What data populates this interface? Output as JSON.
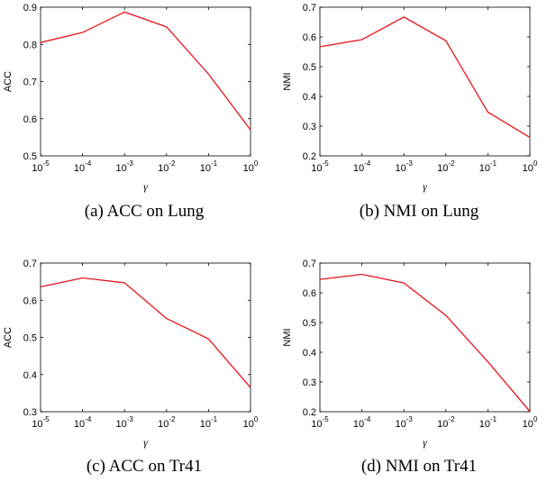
{
  "colors": {
    "line": "#e8141c",
    "axis": "#000000"
  },
  "chart_data": [
    {
      "type": "line",
      "caption": "(a)  ACC on Lung",
      "xlabel": "γ",
      "ylabel": "ACC",
      "x_scale": "log",
      "x": [
        1e-05,
        0.0001,
        0.001,
        0.01,
        0.1,
        1
      ],
      "xtick_labels": [
        {
          "base": "10",
          "exp": "-5"
        },
        {
          "base": "10",
          "exp": "-4"
        },
        {
          "base": "10",
          "exp": "-3"
        },
        {
          "base": "10",
          "exp": "-2"
        },
        {
          "base": "10",
          "exp": "-1"
        },
        {
          "base": "10",
          "exp": "0"
        }
      ],
      "ylim": [
        0.5,
        0.9
      ],
      "yticks": [
        "0.5",
        "0.6",
        "0.7",
        "0.8",
        "0.9"
      ],
      "series": [
        {
          "values": [
            0.805,
            0.832,
            0.887,
            0.847,
            0.72,
            0.57
          ]
        }
      ]
    },
    {
      "type": "line",
      "caption": "(b)  NMI on Lung",
      "xlabel": "γ",
      "ylabel": "NMI",
      "x_scale": "log",
      "x": [
        1e-05,
        0.0001,
        0.001,
        0.01,
        0.1,
        1
      ],
      "xtick_labels": [
        {
          "base": "10",
          "exp": "-5"
        },
        {
          "base": "10",
          "exp": "-4"
        },
        {
          "base": "10",
          "exp": "-3"
        },
        {
          "base": "10",
          "exp": "-2"
        },
        {
          "base": "10",
          "exp": "-1"
        },
        {
          "base": "10",
          "exp": "0"
        }
      ],
      "ylim": [
        0.2,
        0.7
      ],
      "yticks": [
        "0.2",
        "0.3",
        "0.4",
        "0.5",
        "0.6",
        "0.7"
      ],
      "series": [
        {
          "values": [
            0.567,
            0.591,
            0.667,
            0.587,
            0.347,
            0.262
          ]
        }
      ]
    },
    {
      "type": "line",
      "caption": "(c)  ACC on Tr41",
      "xlabel": "γ",
      "ylabel": "ACC",
      "x_scale": "log",
      "x": [
        1e-05,
        0.0001,
        0.001,
        0.01,
        0.1,
        1
      ],
      "xtick_labels": [
        {
          "base": "10",
          "exp": "-5"
        },
        {
          "base": "10",
          "exp": "-4"
        },
        {
          "base": "10",
          "exp": "-3"
        },
        {
          "base": "10",
          "exp": "-2"
        },
        {
          "base": "10",
          "exp": "-1"
        },
        {
          "base": "10",
          "exp": "0"
        }
      ],
      "ylim": [
        0.3,
        0.7
      ],
      "yticks": [
        "0.3",
        "0.4",
        "0.5",
        "0.6",
        "0.7"
      ],
      "series": [
        {
          "values": [
            0.636,
            0.66,
            0.647,
            0.551,
            0.496,
            0.365
          ]
        }
      ]
    },
    {
      "type": "line",
      "caption": "(d)  NMI on Tr41",
      "xlabel": "γ",
      "ylabel": "NMI",
      "x_scale": "log",
      "x": [
        1e-05,
        0.0001,
        0.001,
        0.01,
        0.1,
        1
      ],
      "xtick_labels": [
        {
          "base": "10",
          "exp": "-5"
        },
        {
          "base": "10",
          "exp": "-4"
        },
        {
          "base": "10",
          "exp": "-3"
        },
        {
          "base": "10",
          "exp": "-2"
        },
        {
          "base": "10",
          "exp": "-1"
        },
        {
          "base": "10",
          "exp": "0"
        }
      ],
      "ylim": [
        0.2,
        0.7
      ],
      "yticks": [
        "0.2",
        "0.3",
        "0.4",
        "0.5",
        "0.6",
        "0.7"
      ],
      "series": [
        {
          "values": [
            0.645,
            0.662,
            0.633,
            0.524,
            0.368,
            0.201
          ]
        }
      ]
    }
  ]
}
